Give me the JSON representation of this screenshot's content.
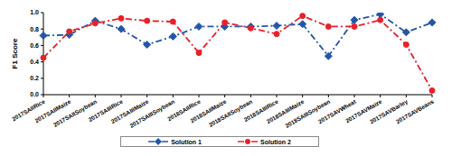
{
  "chart_data": {
    "type": "line",
    "y_label": "F1 Score",
    "categories": [
      "2017SAIIRice",
      "2017SAIIMaize",
      "2017SAIISoybean",
      "2017SAIIIRice",
      "2017SAIIIMaize",
      "2017SAIIISoybean",
      "2018SAIIRice",
      "2018SAIIMaize",
      "2018SAIISoybean",
      "2018SAIIIRice",
      "2018SAIIIMaize",
      "2018SAIIISoybean",
      "2017SAVWheat",
      "2017SAVMaize",
      "2017SAVBarley",
      "2017SAVBeans"
    ],
    "series": [
      {
        "name": "Solution 1",
        "color": "#2456a8",
        "marker": "diamond",
        "line_style": "dashdot",
        "values": [
          0.72,
          0.73,
          0.9,
          0.8,
          0.61,
          0.71,
          0.83,
          0.83,
          0.83,
          0.84,
          0.86,
          0.47,
          0.91,
          0.98,
          0.76,
          0.88
        ]
      },
      {
        "name": "Solution 2",
        "color": "#e8202a",
        "marker": "circle",
        "line_style": "dashdot",
        "values": [
          0.45,
          0.77,
          0.87,
          0.93,
          0.9,
          0.89,
          0.51,
          0.88,
          0.81,
          0.74,
          0.96,
          0.83,
          0.83,
          0.91,
          0.61,
          0.05
        ]
      }
    ],
    "ylim": [
      0,
      1
    ],
    "yticks": [
      {
        "value": 0,
        "label": "0.0"
      },
      0.2,
      0.4,
      0.6,
      0.8,
      {
        "value": 1,
        "label": "1.0"
      }
    ],
    "grid": false,
    "legend": "bottom"
  }
}
